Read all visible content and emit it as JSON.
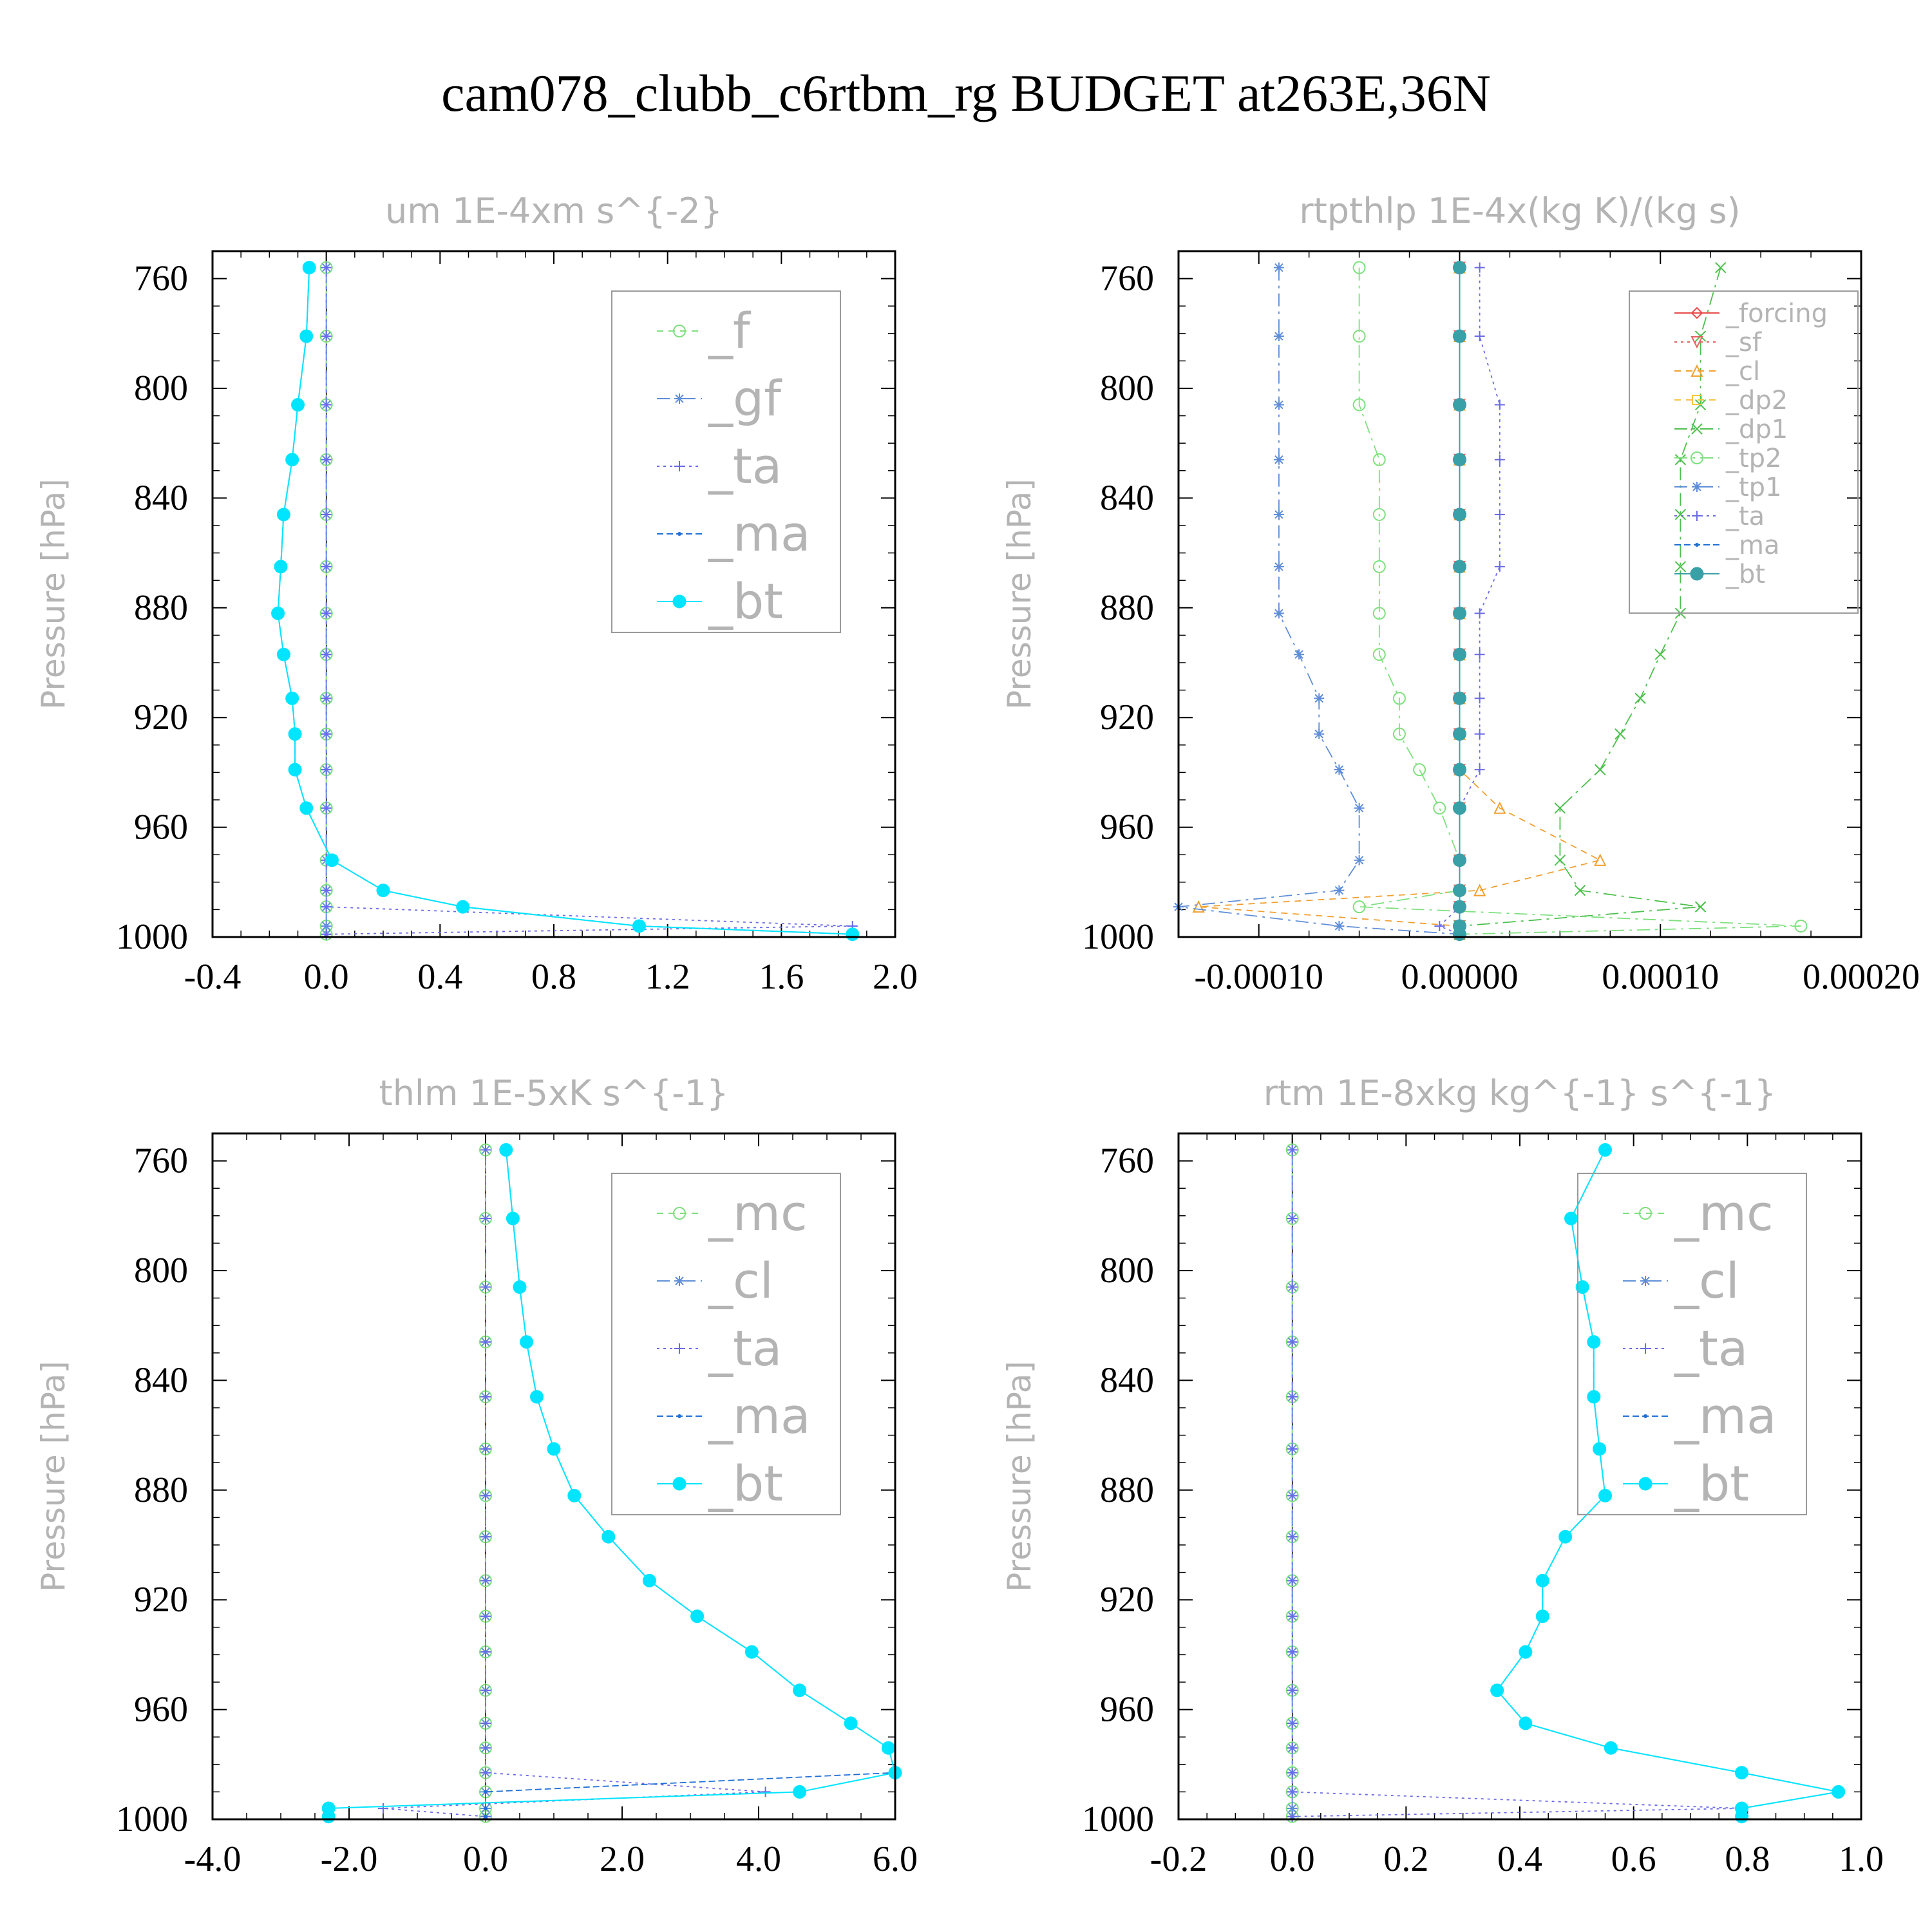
{
  "title": "cam078_clubb_c6rtbm_rg  BUDGET at263E,36N",
  "chart_data": [
    {
      "type": "line",
      "title": "um   1E-4xm s^{-2}",
      "ylabel": "Pressure [hPa]",
      "ylim": [
        1000,
        750
      ],
      "yticks": [
        "760",
        "800",
        "840",
        "880",
        "920",
        "960",
        "1000"
      ],
      "xlim": [
        -0.4,
        2.0
      ],
      "xticks": [
        "-0.4",
        "0.0",
        "0.4",
        "0.8",
        "1.2",
        "1.6",
        "2.0"
      ],
      "legend": "top-right",
      "legend_size": "large",
      "y": [
        756,
        781,
        806,
        826,
        846,
        865,
        882,
        897,
        913,
        926,
        939,
        953,
        972,
        983,
        989,
        996,
        999
      ],
      "series": [
        {
          "name": "_f",
          "color": "#7ee07e",
          "marker": "circle",
          "dash": "10 8",
          "values": [
            0,
            0,
            0,
            0,
            0,
            0,
            0,
            0,
            0,
            0,
            0,
            0,
            0,
            0,
            0,
            0,
            0
          ]
        },
        {
          "name": "_gf",
          "color": "#5f8ed8",
          "marker": "star",
          "dash": "20 8 4 8",
          "values": [
            0,
            0,
            0,
            0,
            0,
            0,
            0,
            0,
            0,
            0,
            0,
            0,
            0,
            0,
            0,
            0,
            0
          ]
        },
        {
          "name": "_ta",
          "color": "#6a6ae8",
          "marker": "plus",
          "dash": "4 6",
          "values": [
            0,
            0,
            0,
            0,
            0,
            0,
            0,
            0,
            0,
            0,
            0,
            0,
            0,
            0,
            0,
            1.85,
            0
          ]
        },
        {
          "name": "_ma",
          "color": "#1f6fd6",
          "marker": "dot",
          "dash": "10 5",
          "values": [
            -0.06,
            -0.07,
            -0.1,
            -0.12,
            -0.15,
            -0.16,
            -0.17,
            -0.15,
            -0.12,
            -0.11,
            -0.11,
            -0.07,
            0.02,
            0.2,
            0.48,
            1.1,
            1.85
          ]
        },
        {
          "name": "_bt",
          "color": "#00e5ff",
          "marker": "disk",
          "dash": "",
          "values": [
            -0.06,
            -0.07,
            -0.1,
            -0.12,
            -0.15,
            -0.16,
            -0.17,
            -0.15,
            -0.12,
            -0.11,
            -0.11,
            -0.07,
            0.02,
            0.2,
            0.48,
            1.1,
            1.85
          ]
        }
      ]
    },
    {
      "type": "line",
      "title": "rtpthlp   1E-4x(kg K)/(kg s)",
      "ylabel": "Pressure [hPa]",
      "ylim": [
        1000,
        750
      ],
      "yticks": [
        "760",
        "800",
        "840",
        "880",
        "920",
        "960",
        "1000"
      ],
      "xlim": [
        -0.00014,
        0.0002
      ],
      "xticks": [
        "-0.00010",
        "0.00000",
        "0.00010",
        "0.00020"
      ],
      "legend": "top-right",
      "legend_size": "small",
      "y": [
        756,
        781,
        806,
        826,
        846,
        865,
        882,
        897,
        913,
        926,
        939,
        953,
        972,
        983,
        989,
        996,
        999
      ],
      "series": [
        {
          "name": "_forcing",
          "color": "#e84a4a",
          "marker": "diamond",
          "dash": "",
          "values": [
            0,
            0,
            0,
            0,
            0,
            0,
            0,
            0,
            0,
            0,
            0,
            0,
            0,
            0,
            0,
            0,
            0
          ]
        },
        {
          "name": "_sf",
          "color": "#e86060",
          "marker": "triangle-down",
          "dash": "4 6",
          "values": [
            0,
            0,
            0,
            0,
            0,
            0,
            0,
            0,
            0,
            0,
            0,
            0,
            0,
            0,
            0,
            0,
            0
          ]
        },
        {
          "name": "_cl",
          "color": "#f0a030",
          "marker": "triangle",
          "dash": "10 8",
          "values": [
            0,
            0,
            0,
            0,
            0,
            0,
            0,
            0,
            0,
            0,
            0,
            2e-05,
            7e-05,
            1e-05,
            -0.00013,
            0,
            0
          ]
        },
        {
          "name": "_dp2",
          "color": "#f5c542",
          "marker": "square",
          "dash": "10 8",
          "values": [
            0,
            0,
            0,
            0,
            0,
            0,
            0,
            0,
            0,
            0,
            0,
            0,
            0,
            0,
            0,
            0,
            0
          ]
        },
        {
          "name": "_dp1",
          "color": "#4cbf4c",
          "marker": "cross",
          "dash": "20 8 4 8",
          "values": [
            0.00013,
            0.00012,
            0.00012,
            0.00011,
            0.00011,
            0.00011,
            0.00011,
            0.0001,
            9e-05,
            8e-05,
            7e-05,
            5e-05,
            5e-05,
            6e-05,
            0.00012,
            0,
            0
          ]
        },
        {
          "name": "_tp2",
          "color": "#7ee07e",
          "marker": "circle",
          "dash": "20 8 4 8",
          "values": [
            -5e-05,
            -5e-05,
            -5e-05,
            -4e-05,
            -4e-05,
            -4e-05,
            -4e-05,
            -4e-05,
            -3e-05,
            -3e-05,
            -2e-05,
            -1e-05,
            0,
            0,
            -5e-05,
            0.00017,
            0
          ]
        },
        {
          "name": "_tp1",
          "color": "#5f8ed8",
          "marker": "star",
          "dash": "20 8 4 8",
          "values": [
            -9e-05,
            -9e-05,
            -9e-05,
            -9e-05,
            -9e-05,
            -9e-05,
            -9e-05,
            -8e-05,
            -7e-05,
            -7e-05,
            -6e-05,
            -5e-05,
            -5e-05,
            -6e-05,
            -0.00014,
            -6e-05,
            0
          ]
        },
        {
          "name": "_ta",
          "color": "#6a6ae8",
          "marker": "plus",
          "dash": "4 6",
          "values": [
            1e-05,
            1e-05,
            2e-05,
            2e-05,
            2e-05,
            2e-05,
            1e-05,
            1e-05,
            1e-05,
            1e-05,
            1e-05,
            0,
            0,
            0,
            0,
            -1e-05,
            0
          ]
        },
        {
          "name": "_ma",
          "color": "#1f6fd6",
          "marker": "dot",
          "dash": "10 5",
          "values": [
            0,
            0,
            0,
            0,
            0,
            0,
            0,
            0,
            0,
            0,
            0,
            0,
            0,
            0,
            0,
            0,
            0
          ]
        },
        {
          "name": "_bt",
          "color": "#3aa0a8",
          "marker": "disk",
          "dash": "",
          "values": [
            0,
            0,
            0,
            0,
            0,
            0,
            0,
            0,
            0,
            0,
            0,
            0,
            0,
            0,
            0,
            0,
            0
          ]
        }
      ]
    },
    {
      "type": "line",
      "title": "thlm   1E-5xK s^{-1}",
      "ylabel": "Pressure [hPa]",
      "ylim": [
        1000,
        750
      ],
      "yticks": [
        "760",
        "800",
        "840",
        "880",
        "920",
        "960",
        "1000"
      ],
      "xlim": [
        -4.0,
        6.0
      ],
      "xticks": [
        "-4.0",
        "-2.0",
        "0.0",
        "2.0",
        "4.0",
        "6.0"
      ],
      "legend": "top-right",
      "legend_size": "large",
      "y": [
        756,
        781,
        806,
        826,
        846,
        865,
        882,
        897,
        913,
        926,
        939,
        953,
        965,
        974,
        983,
        990,
        996,
        999
      ],
      "series": [
        {
          "name": "_mc",
          "color": "#7ee07e",
          "marker": "circle",
          "dash": "10 8",
          "values": [
            0,
            0,
            0,
            0,
            0,
            0,
            0,
            0,
            0,
            0,
            0,
            0,
            0,
            0,
            0,
            0,
            0,
            0
          ]
        },
        {
          "name": "_cl",
          "color": "#5f8ed8",
          "marker": "star",
          "dash": "20 8 4 8",
          "values": [
            0,
            0,
            0,
            0,
            0,
            0,
            0,
            0,
            0,
            0,
            0,
            0,
            0,
            0,
            0,
            0,
            0,
            0
          ]
        },
        {
          "name": "_ta",
          "color": "#6a6ae8",
          "marker": "plus",
          "dash": "4 6",
          "values": [
            0,
            0,
            0,
            0,
            0,
            0,
            0,
            0,
            0,
            0,
            0,
            0,
            0,
            0,
            0,
            4.1,
            -1.5,
            0
          ]
        },
        {
          "name": "_ma",
          "color": "#1f6fd6",
          "marker": "dot",
          "dash": "10 5",
          "values": [
            0.3,
            0.4,
            0.5,
            0.6,
            0.75,
            1.0,
            1.3,
            1.8,
            2.4,
            3.1,
            3.9,
            4.6,
            5.35,
            5.9,
            6.0,
            0,
            0,
            0
          ]
        },
        {
          "name": "_bt",
          "color": "#00e5ff",
          "marker": "disk",
          "dash": "",
          "values": [
            0.3,
            0.4,
            0.5,
            0.6,
            0.75,
            1.0,
            1.3,
            1.8,
            2.4,
            3.1,
            3.9,
            4.6,
            5.35,
            5.9,
            6.0,
            4.6,
            -2.3,
            -2.3
          ]
        }
      ]
    },
    {
      "type": "line",
      "title": "rtm   1E-8xkg kg^{-1} s^{-1}",
      "ylabel": "Pressure [hPa]",
      "ylim": [
        1000,
        750
      ],
      "yticks": [
        "760",
        "800",
        "840",
        "880",
        "920",
        "960",
        "1000"
      ],
      "xlim": [
        -0.2,
        1.0
      ],
      "xticks": [
        "-0.2",
        "0.0",
        "0.2",
        "0.4",
        "0.6",
        "0.8",
        "1.0"
      ],
      "legend": "top-right",
      "legend_size": "large",
      "y": [
        756,
        781,
        806,
        826,
        846,
        865,
        882,
        897,
        913,
        926,
        939,
        953,
        965,
        974,
        983,
        990,
        996,
        999
      ],
      "series": [
        {
          "name": "_mc",
          "color": "#7ee07e",
          "marker": "circle",
          "dash": "10 8",
          "values": [
            0,
            0,
            0,
            0,
            0,
            0,
            0,
            0,
            0,
            0,
            0,
            0,
            0,
            0,
            0,
            0,
            0,
            0
          ]
        },
        {
          "name": "_cl",
          "color": "#5f8ed8",
          "marker": "star",
          "dash": "20 8 4 8",
          "values": [
            0,
            0,
            0,
            0,
            0,
            0,
            0,
            0,
            0,
            0,
            0,
            0,
            0,
            0,
            0,
            0,
            0,
            0
          ]
        },
        {
          "name": "_ta",
          "color": "#6a6ae8",
          "marker": "plus",
          "dash": "4 6",
          "values": [
            0,
            0,
            0,
            0,
            0,
            0,
            0,
            0,
            0,
            0,
            0,
            0,
            0,
            0,
            0,
            0,
            0.79,
            0
          ]
        },
        {
          "name": "_ma",
          "color": "#1f6fd6",
          "marker": "dot",
          "dash": "10 5",
          "values": [
            0.55,
            0.49,
            0.51,
            0.53,
            0.53,
            0.54,
            0.55,
            0.48,
            0.44,
            0.44,
            0.41,
            0.36,
            0.41,
            0.56,
            0.79,
            0.96,
            0.79,
            0.79
          ]
        },
        {
          "name": "_bt",
          "color": "#00e5ff",
          "marker": "disk",
          "dash": "",
          "values": [
            0.55,
            0.49,
            0.51,
            0.53,
            0.53,
            0.54,
            0.55,
            0.48,
            0.44,
            0.44,
            0.41,
            0.36,
            0.41,
            0.56,
            0.79,
            0.96,
            0.79,
            0.79
          ]
        }
      ]
    }
  ]
}
